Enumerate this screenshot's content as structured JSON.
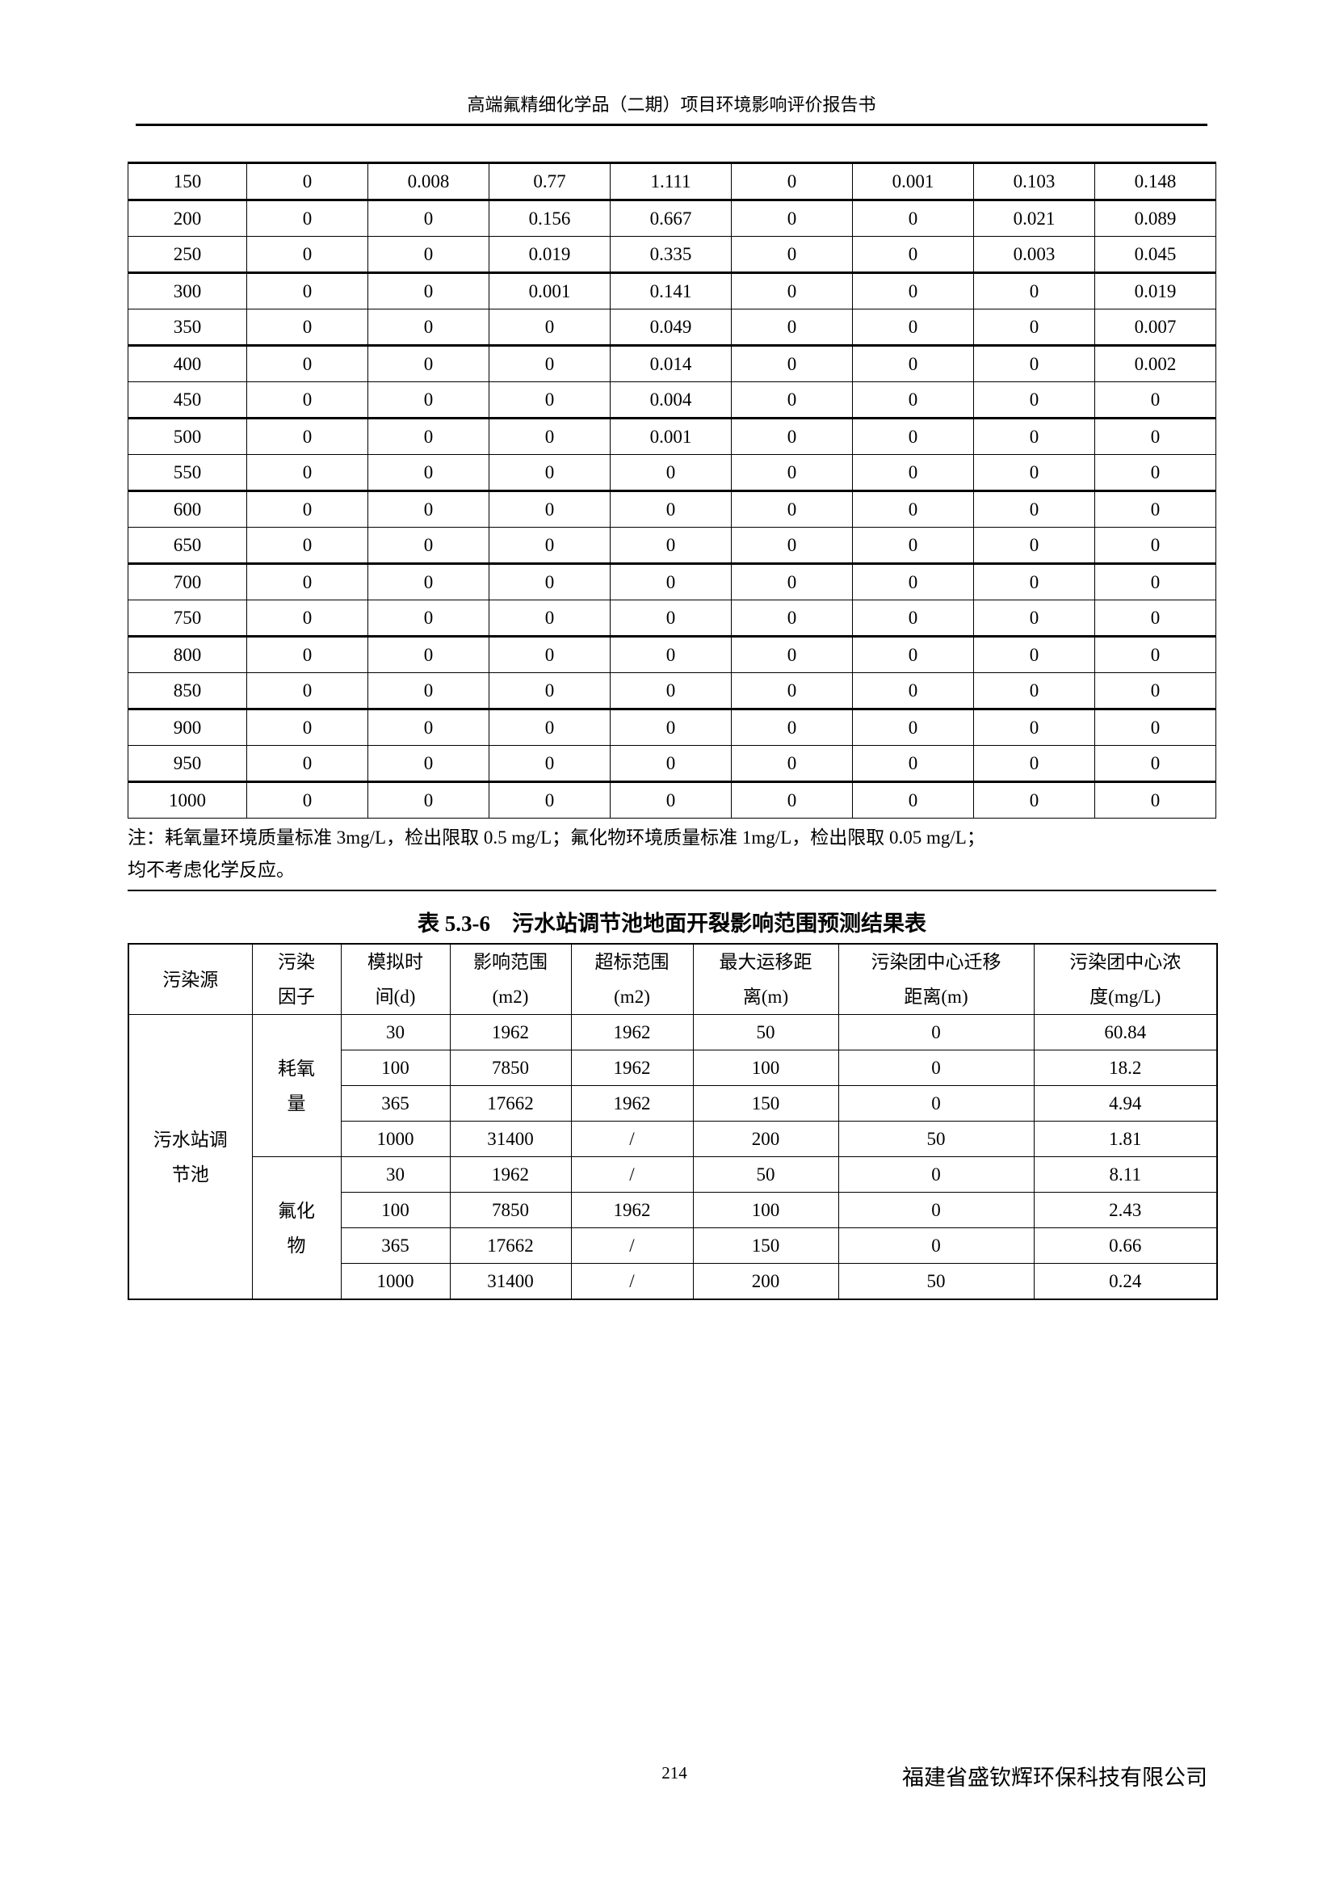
{
  "header": {
    "title": "高端氟精细化学品（二期）项目环境影响评价报告书"
  },
  "table1": {
    "rows": [
      [
        "150",
        "0",
        "0.008",
        "0.77",
        "1.111",
        "0",
        "0.001",
        "0.103",
        "0.148"
      ],
      [
        "200",
        "0",
        "0",
        "0.156",
        "0.667",
        "0",
        "0",
        "0.021",
        "0.089"
      ],
      [
        "250",
        "0",
        "0",
        "0.019",
        "0.335",
        "0",
        "0",
        "0.003",
        "0.045"
      ],
      [
        "300",
        "0",
        "0",
        "0.001",
        "0.141",
        "0",
        "0",
        "0",
        "0.019"
      ],
      [
        "350",
        "0",
        "0",
        "0",
        "0.049",
        "0",
        "0",
        "0",
        "0.007"
      ],
      [
        "400",
        "0",
        "0",
        "0",
        "0.014",
        "0",
        "0",
        "0",
        "0.002"
      ],
      [
        "450",
        "0",
        "0",
        "0",
        "0.004",
        "0",
        "0",
        "0",
        "0"
      ],
      [
        "500",
        "0",
        "0",
        "0",
        "0.001",
        "0",
        "0",
        "0",
        "0"
      ],
      [
        "550",
        "0",
        "0",
        "0",
        "0",
        "0",
        "0",
        "0",
        "0"
      ],
      [
        "600",
        "0",
        "0",
        "0",
        "0",
        "0",
        "0",
        "0",
        "0"
      ],
      [
        "650",
        "0",
        "0",
        "0",
        "0",
        "0",
        "0",
        "0",
        "0"
      ],
      [
        "700",
        "0",
        "0",
        "0",
        "0",
        "0",
        "0",
        "0",
        "0"
      ],
      [
        "750",
        "0",
        "0",
        "0",
        "0",
        "0",
        "0",
        "0",
        "0"
      ],
      [
        "800",
        "0",
        "0",
        "0",
        "0",
        "0",
        "0",
        "0",
        "0"
      ],
      [
        "850",
        "0",
        "0",
        "0",
        "0",
        "0",
        "0",
        "0",
        "0"
      ],
      [
        "900",
        "0",
        "0",
        "0",
        "0",
        "0",
        "0",
        "0",
        "0"
      ],
      [
        "950",
        "0",
        "0",
        "0",
        "0",
        "0",
        "0",
        "0",
        "0"
      ],
      [
        "1000",
        "0",
        "0",
        "0",
        "0",
        "0",
        "0",
        "0",
        "0"
      ]
    ],
    "note_line1": "注：耗氧量环境质量标准 3mg/L，检出限取 0.5 mg/L；氟化物环境质量标准 1mg/L，检出限取 0.05 mg/L；",
    "note_line2": "均不考虑化学反应。"
  },
  "table2": {
    "caption": "表 5.3-6　污水站调节池地面开裂影响范围预测结果表",
    "headers": [
      [
        "污染源"
      ],
      [
        "污染",
        "因子"
      ],
      [
        "模拟时",
        "间(d)"
      ],
      [
        "影响范围",
        "(m2)"
      ],
      [
        "超标范围",
        "(m2)"
      ],
      [
        "最大运移距",
        "离(m)"
      ],
      [
        "污染团中心迁移",
        "距离(m)"
      ],
      [
        "污染团中心浓",
        "度(mg/L)"
      ]
    ],
    "source": [
      "污水站调",
      "节池"
    ],
    "groups": [
      {
        "factor": [
          "耗氧",
          "量"
        ],
        "rows": [
          [
            "30",
            "1962",
            "1962",
            "50",
            "0",
            "60.84"
          ],
          [
            "100",
            "7850",
            "1962",
            "100",
            "0",
            "18.2"
          ],
          [
            "365",
            "17662",
            "1962",
            "150",
            "0",
            "4.94"
          ],
          [
            "1000",
            "31400",
            "/",
            "200",
            "50",
            "1.81"
          ]
        ]
      },
      {
        "factor": [
          "氟化",
          "物"
        ],
        "rows": [
          [
            "30",
            "1962",
            "/",
            "50",
            "0",
            "8.11"
          ],
          [
            "100",
            "7850",
            "1962",
            "100",
            "0",
            "2.43"
          ],
          [
            "365",
            "17662",
            "/",
            "150",
            "0",
            "0.66"
          ],
          [
            "1000",
            "31400",
            "/",
            "200",
            "50",
            "0.24"
          ]
        ]
      }
    ]
  },
  "footer": {
    "page_number": "214",
    "company": "福建省盛钦辉环保科技有限公司"
  }
}
